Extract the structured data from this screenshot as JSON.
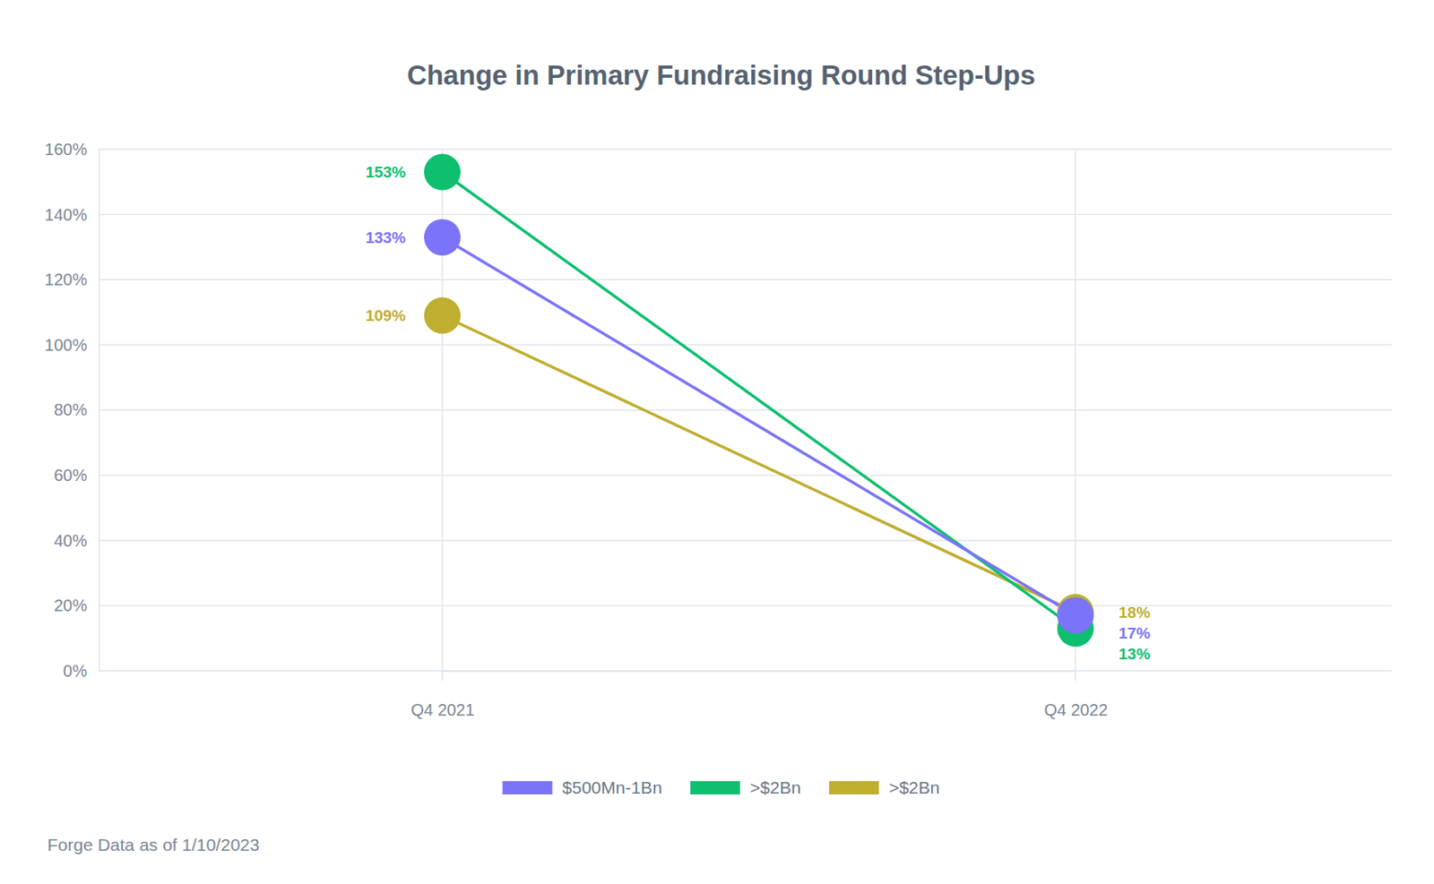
{
  "chart_data": {
    "type": "line",
    "title": "Change in Primary Fundraising Round Step-Ups",
    "source": "Forge Data as of 1/10/2023",
    "categories": [
      "Q4 2021",
      "Q4 2022"
    ],
    "series": [
      {
        "name": "$500Mn-1Bn",
        "color": "#7b73f9",
        "values": [
          133,
          17
        ],
        "value_labels": [
          "133%",
          "17%"
        ]
      },
      {
        "name": ">$2Bn",
        "color": "#0dbf6f",
        "values": [
          153,
          13
        ],
        "value_labels": [
          "153%",
          "13%"
        ]
      },
      {
        "name": ">$2Bn",
        "color": "#bfae30",
        "values": [
          109,
          18
        ],
        "value_labels": [
          "109%",
          "18%"
        ]
      }
    ],
    "ylim": [
      0,
      160
    ],
    "yticks": [
      {
        "value": 0,
        "label": "0%"
      },
      {
        "value": 20,
        "label": "20%"
      },
      {
        "value": 40,
        "label": "40%"
      },
      {
        "value": 60,
        "label": "60%"
      },
      {
        "value": 80,
        "label": "80%"
      },
      {
        "value": 100,
        "label": "100%"
      },
      {
        "value": 120,
        "label": "120%"
      },
      {
        "value": 140,
        "label": "140%"
      },
      {
        "value": 160,
        "label": "160%"
      }
    ],
    "grid": true,
    "data_labels": true,
    "marker": "circle",
    "legend": "bottom"
  }
}
